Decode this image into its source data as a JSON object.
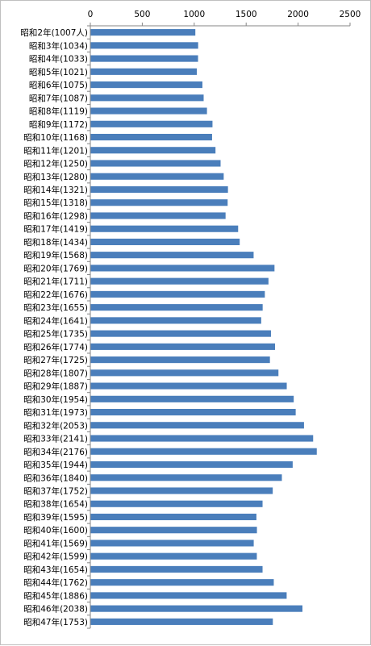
{
  "chart_data": {
    "type": "bar",
    "orientation": "horizontal",
    "title": "",
    "xlabel": "",
    "ylabel": "",
    "xlim": [
      0,
      2500
    ],
    "x_ticks": [
      "0",
      "500",
      "1000",
      "1500",
      "2000",
      "2500"
    ],
    "x_axis_position": "top",
    "grid": false,
    "legend": "none",
    "bar_color": "#4a7ebb",
    "categories": [
      "昭和2年(1007人)",
      "昭和3年(1034)",
      "昭和4年(1033)",
      "昭和5年(1021)",
      "昭和6年(1075)",
      "昭和7年(1087)",
      "昭和8年(1119)",
      "昭和9年(1172)",
      "昭和10年(1168)",
      "昭和11年(1201)",
      "昭和12年(1250)",
      "昭和13年(1280)",
      "昭和14年(1321)",
      "昭和15年(1318)",
      "昭和16年(1298)",
      "昭和17年(1419)",
      "昭和18年(1434)",
      "昭和19年(1568)",
      "昭和20年(1769)",
      "昭和21年(1711)",
      "昭和22年(1676)",
      "昭和23年(1655)",
      "昭和24年(1641)",
      "昭和25年(1735)",
      "昭和26年(1774)",
      "昭和27年(1725)",
      "昭和28年(1807)",
      "昭和29年(1887)",
      "昭和30年(1954)",
      "昭和31年(1973)",
      "昭和32年(2053)",
      "昭和33年(2141)",
      "昭和34年(2176)",
      "昭和35年(1944)",
      "昭和36年(1840)",
      "昭和37年(1752)",
      "昭和38年(1654)",
      "昭和39年(1595)",
      "昭和40年(1600)",
      "昭和41年(1569)",
      "昭和42年(1599)",
      "昭和43年(1654)",
      "昭和44年(1762)",
      "昭和45年(1886)",
      "昭和46年(2038)",
      "昭和47年(1753)"
    ],
    "values": [
      1007,
      1034,
      1033,
      1021,
      1075,
      1087,
      1119,
      1172,
      1168,
      1201,
      1250,
      1280,
      1321,
      1318,
      1298,
      1419,
      1434,
      1568,
      1769,
      1711,
      1676,
      1655,
      1641,
      1735,
      1774,
      1725,
      1807,
      1887,
      1954,
      1973,
      2053,
      2141,
      2176,
      1944,
      1840,
      1752,
      1654,
      1595,
      1600,
      1569,
      1599,
      1654,
      1762,
      1886,
      2038,
      1753
    ]
  }
}
